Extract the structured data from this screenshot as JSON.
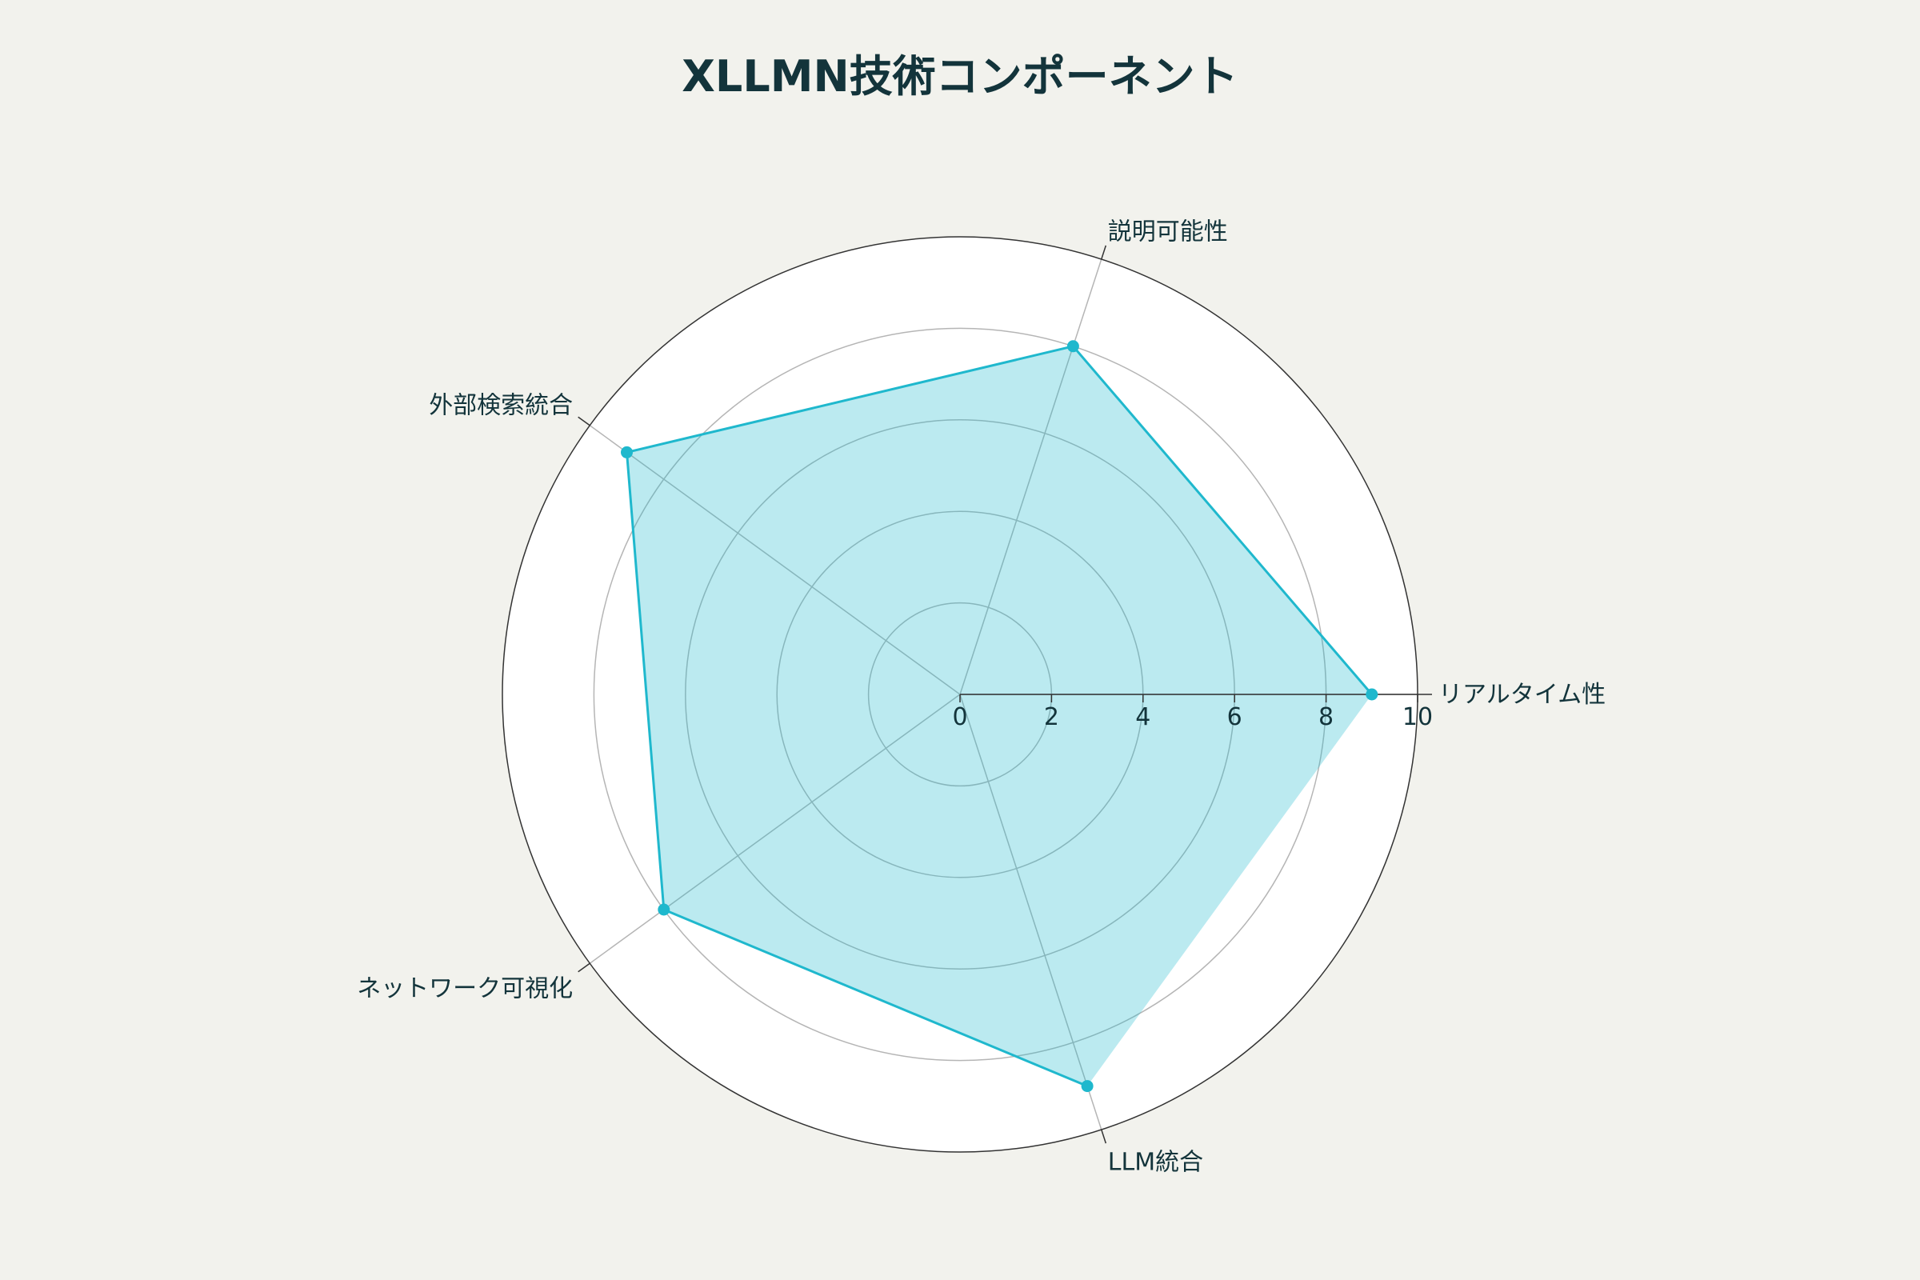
{
  "chart_data": {
    "type": "radar",
    "title": "XLLMN技術コンポーネント",
    "categories": [
      "リアルタイム性",
      "説明可能性",
      "外部検索統合",
      "ネットワーク可視化",
      "LLM統合"
    ],
    "series": [
      {
        "values": [
          9,
          8,
          9,
          8,
          9
        ],
        "color": "#1fb8cd"
      }
    ],
    "radial_range": [
      0,
      10
    ],
    "radial_ticks": [
      "0",
      "2",
      "4",
      "6",
      "8",
      "10"
    ],
    "grid": true,
    "legend": "none",
    "colors": {
      "background": "#f2f2ed",
      "plot_background": "#ffffff",
      "fill": "#1fb8cd",
      "line": "#1fb8cd",
      "grid": "#b5b5b5",
      "outer_ring": "#333333",
      "text": "#13343b"
    }
  }
}
